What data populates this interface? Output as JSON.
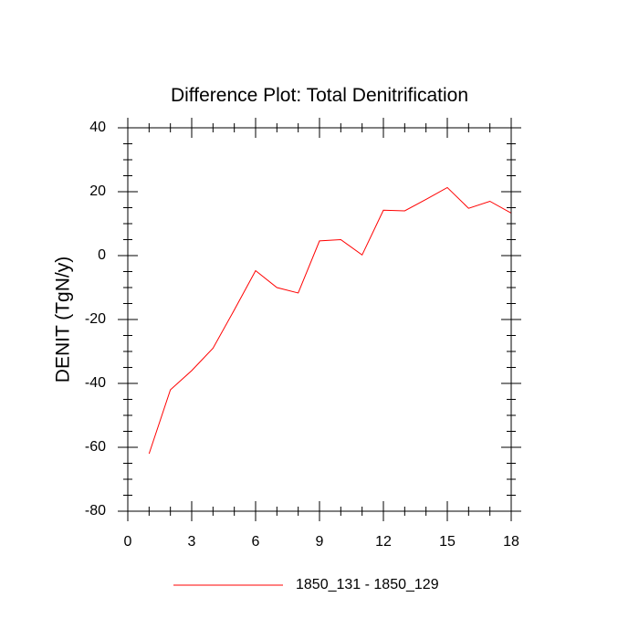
{
  "chart_data": {
    "type": "line",
    "title": "Difference Plot: Total Denitrification",
    "xlabel": "",
    "ylabel": "DENIT  (TgN/y)",
    "xlim": [
      0,
      18
    ],
    "ylim": [
      -80,
      40
    ],
    "x_ticks": [
      0,
      3,
      6,
      9,
      12,
      15,
      18
    ],
    "x_tick_labels": [
      "0",
      "3",
      "6",
      "9",
      "12",
      "15",
      "18"
    ],
    "y_ticks": [
      -80,
      -60,
      -40,
      -20,
      0,
      20,
      40
    ],
    "y_tick_labels": [
      "-80",
      "-60",
      "-40",
      "-20",
      "0",
      "20",
      "40"
    ],
    "grid": false,
    "legend_position": "bottom-center",
    "series": [
      {
        "name": "1850_131 - 1850_129",
        "color": "#ff0000",
        "x": [
          1,
          2,
          3,
          4,
          5,
          6,
          7,
          8,
          9,
          10,
          11,
          12,
          13,
          14,
          15,
          16,
          17,
          18
        ],
        "values": [
          -62,
          -42,
          -36,
          -29,
          -17,
          -4.7,
          -10,
          -11.7,
          4.6,
          5.0,
          0.2,
          14.2,
          14.0,
          17.6,
          21.3,
          14.8,
          17.0,
          13.3
        ]
      }
    ]
  }
}
